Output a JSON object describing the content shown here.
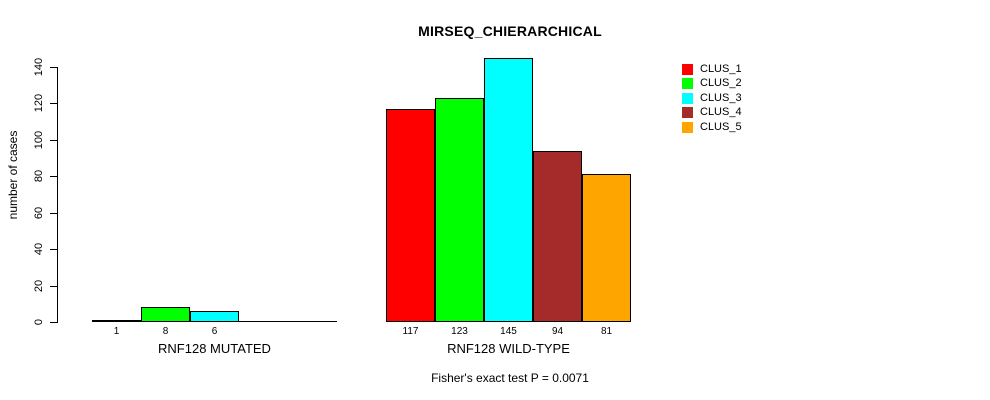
{
  "chart_data": {
    "type": "bar",
    "title": "MIRSEQ_CHIERARCHICAL",
    "xlabel": "",
    "ylabel": "number of cases",
    "ylim": [
      0,
      145
    ],
    "yticks": [
      0,
      20,
      40,
      60,
      80,
      100,
      120,
      140
    ],
    "grid": false,
    "legend_position": "right",
    "categories": [
      "RNF128 MUTATED",
      "RNF128 WILD-TYPE"
    ],
    "series": [
      {
        "name": "CLUS_1",
        "color": "#FF0000",
        "values": [
          1,
          117
        ]
      },
      {
        "name": "CLUS_2",
        "color": "#00FF00",
        "values": [
          8,
          123
        ]
      },
      {
        "name": "CLUS_3",
        "color": "#00FFFF",
        "values": [
          6,
          145
        ]
      },
      {
        "name": "CLUS_4",
        "color": "#A52A2A",
        "values": [
          0,
          94
        ]
      },
      {
        "name": "CLUS_5",
        "color": "#FFA500",
        "values": [
          0,
          81
        ]
      }
    ],
    "bar_value_labels_shown": [
      "1",
      "8",
      "6",
      "117",
      "123",
      "145",
      "94",
      "81"
    ],
    "hide_zero_value_labels": true,
    "annotation": "Fisher's exact test P = 0.0071"
  }
}
